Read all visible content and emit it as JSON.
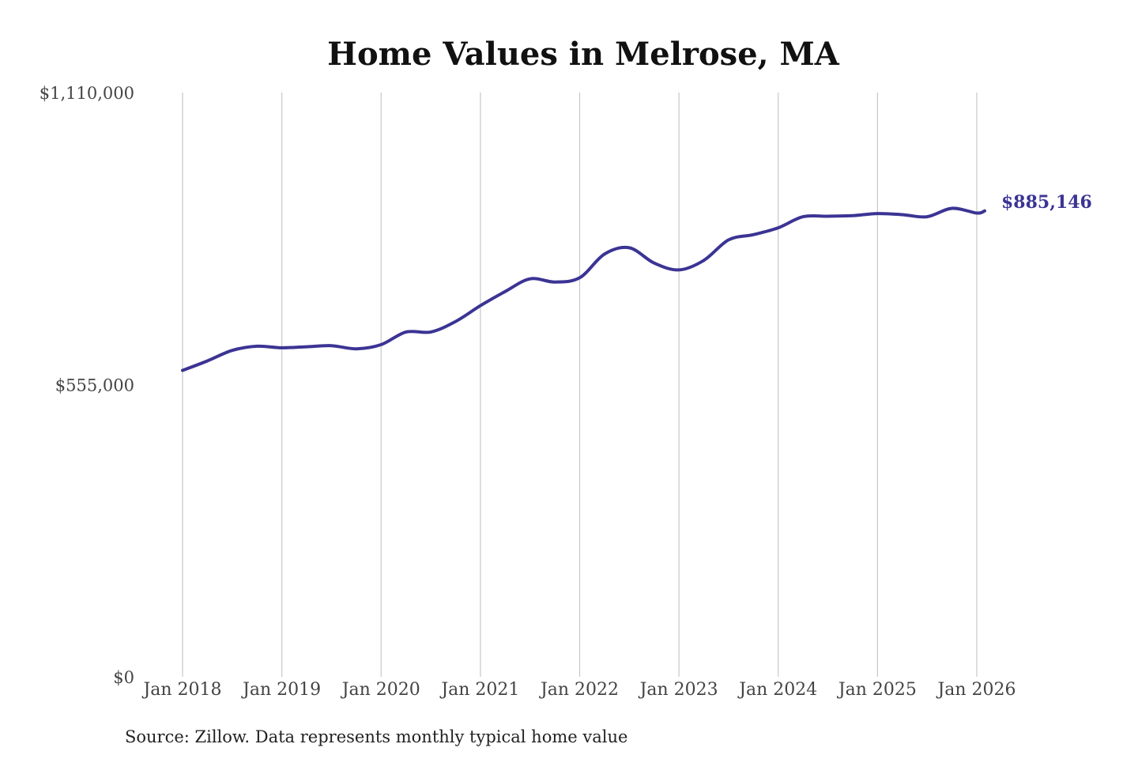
{
  "chart_data": {
    "type": "line",
    "title": "Home Values in Melrose, MA",
    "source": "Source: Zillow. Data represents monthly typical home value",
    "end_label": "$885,146",
    "y_ticks": [
      {
        "value": 0,
        "label": "$0"
      },
      {
        "value": 555000,
        "label": "$555,000"
      },
      {
        "value": 1110000,
        "label": "$1,110,000"
      }
    ],
    "ylim": [
      0,
      1110000
    ],
    "x_ticks": [
      {
        "value": 2018,
        "label": "Jan 2018"
      },
      {
        "value": 2019,
        "label": "Jan 2019"
      },
      {
        "value": 2020,
        "label": "Jan 2020"
      },
      {
        "value": 2021,
        "label": "Jan 2021"
      },
      {
        "value": 2022,
        "label": "Jan 2022"
      },
      {
        "value": 2023,
        "label": "Jan 2023"
      },
      {
        "value": 2024,
        "label": "Jan 2024"
      },
      {
        "value": 2025,
        "label": "Jan 2025"
      },
      {
        "value": 2026,
        "label": "Jan 2026"
      }
    ],
    "xlim": [
      2018,
      2026
    ],
    "grid": "vertical",
    "series_color": "#3b3494",
    "series": [
      {
        "x": [
          2018.0,
          2018.25,
          2018.5,
          2018.75,
          2019.0,
          2019.25,
          2019.5,
          2019.75,
          2020.0,
          2020.25,
          2020.5,
          2020.75,
          2021.0,
          2021.25,
          2021.5,
          2021.75,
          2022.0,
          2022.25,
          2022.5,
          2022.75,
          2023.0,
          2023.25,
          2023.5,
          2023.75,
          2024.0,
          2024.25,
          2024.5,
          2024.75,
          2025.0,
          2025.25,
          2025.5,
          2025.75,
          2026.0,
          2026.08
        ],
        "values": [
          582000,
          600000,
          620000,
          628000,
          625000,
          627000,
          629000,
          623000,
          631000,
          655000,
          655000,
          675000,
          705000,
          732000,
          756000,
          750000,
          758000,
          803000,
          815000,
          786000,
          773000,
          791000,
          830000,
          840000,
          853000,
          874000,
          875000,
          876000,
          880000,
          878000,
          874000,
          890000,
          881000,
          885146
        ]
      }
    ]
  }
}
